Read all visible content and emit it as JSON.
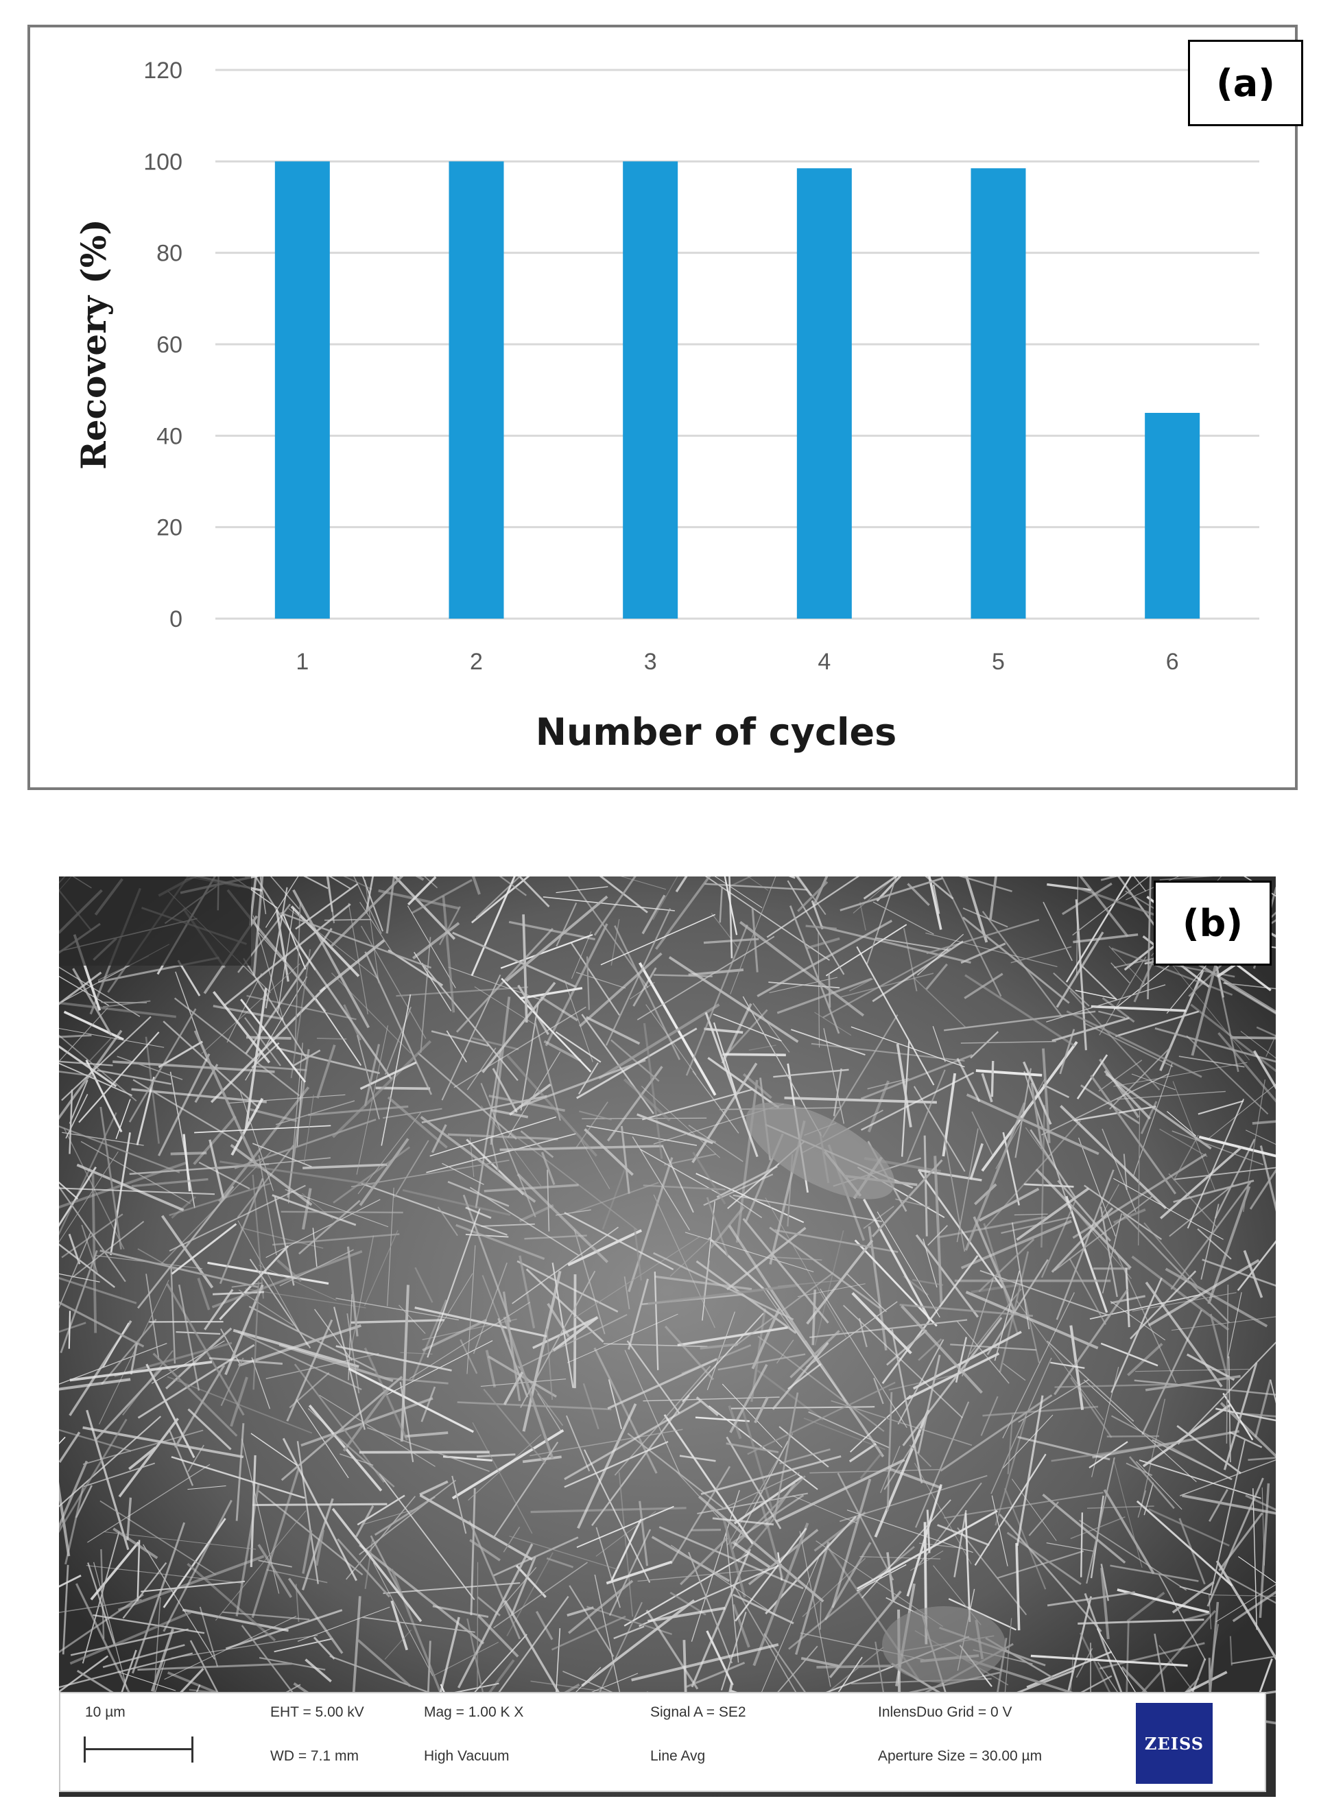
{
  "chart_data": {
    "type": "bar",
    "categories": [
      "1",
      "2",
      "3",
      "4",
      "5",
      "6"
    ],
    "values": [
      100,
      100,
      100,
      98.5,
      98.5,
      45
    ],
    "xlabel": "Number of cycles",
    "ylabel": "Recovery (%)",
    "ylim": [
      0,
      120
    ],
    "yticks": [
      0,
      20,
      40,
      60,
      80,
      100,
      120
    ],
    "grid": true,
    "bar_color": "#1a9ad7"
  },
  "panel_a": {
    "label": "(a)"
  },
  "panel_b": {
    "label": "(b)",
    "info": {
      "scale": "10 µm",
      "eht": "EHT =  5.00 kV",
      "wd": "WD =  7.1 mm",
      "mag": "Mag =    1.00 K X",
      "vacuum": "High Vacuum",
      "signal": "Signal A = SE2",
      "line_avg": "Line Avg",
      "grid": "InlensDuo Grid =     0 V",
      "aperture": "Aperture Size = 30.00 µm",
      "logo": "ZEISS"
    }
  }
}
